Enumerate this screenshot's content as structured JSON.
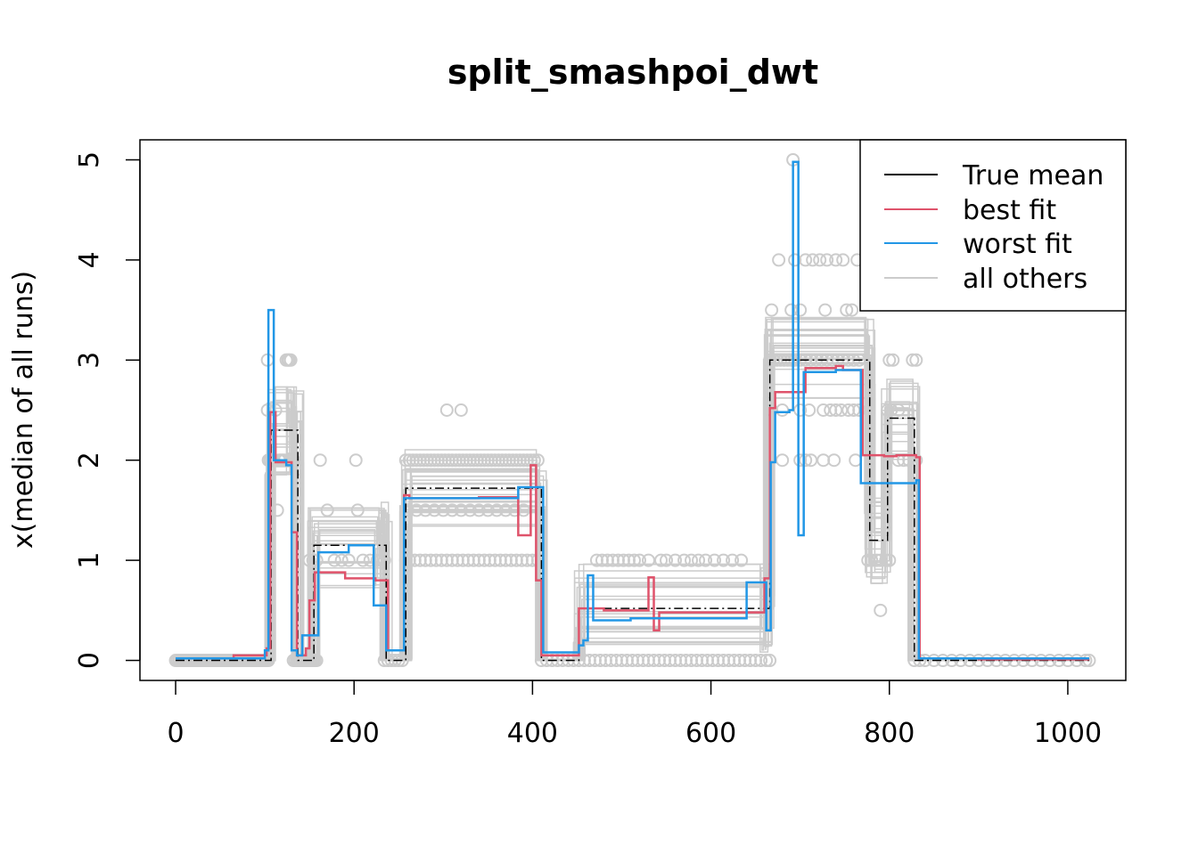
{
  "chart_data": {
    "type": "line",
    "title": "split_smashpoi_dwt",
    "xlabel": "",
    "ylabel": "x(median of all runs)",
    "xlim": [
      -40,
      1065
    ],
    "ylim": [
      -0.2,
      5.2
    ],
    "x_ticks": [
      0,
      200,
      400,
      600,
      800,
      1000
    ],
    "x_tick_labels": [
      "0",
      "200",
      "400",
      "600",
      "800",
      "1000"
    ],
    "y_ticks": [
      0,
      1,
      2,
      3,
      4,
      5
    ],
    "y_tick_labels": [
      "0",
      "1",
      "2",
      "3",
      "4",
      "5"
    ],
    "legend_position": "top-right",
    "colors": {
      "true_mean": "#000000",
      "best_fit": "#df536b",
      "worst_fit": "#2297e6",
      "all_others": "#cccccc"
    },
    "series": [
      {
        "name": "True mean",
        "style": "step-dashed",
        "x": [
          0,
          102,
          107,
          131,
          137,
          155,
          230,
          236,
          258,
          410,
          452,
          662,
          666,
          778,
          798,
          828,
          832,
          1024
        ],
        "y": [
          0,
          0,
          2.3,
          2.3,
          0,
          1.15,
          1.15,
          0,
          1.72,
          0,
          0.52,
          0.52,
          3.0,
          1.2,
          2.42,
          0,
          0,
          0
        ]
      },
      {
        "name": "best fit",
        "style": "step",
        "x": [
          0,
          65,
          96,
          102,
          106,
          112,
          126,
          130,
          136,
          140,
          146,
          150,
          156,
          162,
          190,
          224,
          238,
          256,
          262,
          270,
          340,
          384,
          398,
          404,
          410,
          414,
          452,
          463,
          470,
          480,
          530,
          536,
          542,
          600,
          660,
          666,
          672,
          690,
          706,
          740,
          748,
          770,
          786,
          794,
          808,
          830,
          834,
          900,
          1024
        ],
        "y": [
          0.02,
          0.05,
          0.05,
          0.12,
          2.48,
          1.98,
          1.98,
          1.28,
          0.05,
          0.05,
          0.12,
          0.6,
          0.88,
          0.88,
          0.82,
          0.8,
          0.1,
          1.65,
          1.62,
          1.62,
          1.63,
          1.25,
          1.95,
          0.8,
          0.05,
          0.05,
          0.52,
          0.52,
          0.52,
          0.5,
          0.83,
          0.3,
          0.48,
          0.48,
          0.82,
          2.52,
          2.68,
          2.68,
          2.92,
          2.94,
          2.9,
          2.05,
          2.05,
          2.04,
          2.05,
          2.03,
          0.02,
          0.01,
          0.01
        ],
        "note": "x[i]..x[i+1] segment at y[i]"
      },
      {
        "name": "worst fit",
        "style": "step",
        "x": [
          0,
          96,
          100,
          104,
          110,
          124,
          130,
          136,
          142,
          148,
          160,
          194,
          222,
          236,
          256,
          262,
          300,
          384,
          412,
          452,
          457,
          462,
          468,
          510,
          640,
          653,
          662,
          667,
          672,
          688,
          692,
          698,
          704,
          740,
          768,
          830,
          833,
          860,
          1024
        ],
        "y": [
          0.02,
          0.02,
          0.1,
          3.5,
          2.0,
          1.95,
          0.1,
          0.05,
          0.25,
          0.25,
          1.08,
          1.15,
          0.55,
          0.1,
          1.62,
          1.62,
          1.62,
          1.73,
          0.08,
          0.15,
          0.2,
          0.85,
          0.4,
          0.42,
          0.78,
          0.78,
          0.3,
          1.98,
          2.48,
          2.5,
          4.98,
          1.25,
          2.88,
          2.9,
          1.77,
          1.8,
          0.02,
          0.02,
          0.02
        ],
        "note": "x[i]..x[i+1] segment at y[i]"
      },
      {
        "name": "all others",
        "style": "many-steps-and-points"
      }
    ],
    "others_points": [
      [
        0,
        0
      ],
      [
        2,
        0
      ],
      [
        4,
        0
      ],
      [
        6,
        0
      ],
      [
        8,
        0
      ],
      [
        10,
        0
      ],
      [
        12,
        0
      ],
      [
        14,
        0
      ],
      [
        16,
        0
      ],
      [
        18,
        0
      ],
      [
        20,
        0
      ],
      [
        22,
        0
      ],
      [
        24,
        0
      ],
      [
        26,
        0
      ],
      [
        28,
        0
      ],
      [
        30,
        0
      ],
      [
        32,
        0
      ],
      [
        34,
        0
      ],
      [
        36,
        0
      ],
      [
        38,
        0
      ],
      [
        40,
        0
      ],
      [
        42,
        0
      ],
      [
        44,
        0
      ],
      [
        46,
        0
      ],
      [
        48,
        0
      ],
      [
        50,
        0
      ],
      [
        52,
        0
      ],
      [
        54,
        0
      ],
      [
        56,
        0
      ],
      [
        58,
        0
      ],
      [
        60,
        0
      ],
      [
        62,
        0
      ],
      [
        64,
        0
      ],
      [
        66,
        0
      ],
      [
        68,
        0
      ],
      [
        70,
        0
      ],
      [
        72,
        0
      ],
      [
        74,
        0
      ],
      [
        76,
        0
      ],
      [
        78,
        0
      ],
      [
        80,
        0
      ],
      [
        82,
        0
      ],
      [
        84,
        0
      ],
      [
        86,
        0
      ],
      [
        88,
        0
      ],
      [
        90,
        0
      ],
      [
        92,
        0
      ],
      [
        94,
        0
      ],
      [
        96,
        0
      ],
      [
        98,
        0
      ],
      [
        100,
        0
      ],
      [
        102,
        0
      ],
      [
        104,
        0
      ],
      [
        103,
        3
      ],
      [
        103,
        2.5
      ],
      [
        104,
        2
      ],
      [
        106,
        2
      ],
      [
        108,
        2
      ],
      [
        110,
        2
      ],
      [
        112,
        2.5
      ],
      [
        114,
        1.5
      ],
      [
        116,
        2
      ],
      [
        118,
        2
      ],
      [
        120,
        2
      ],
      [
        122,
        2
      ],
      [
        124,
        3
      ],
      [
        126,
        3
      ],
      [
        127,
        3
      ],
      [
        129,
        3
      ],
      [
        130,
        2
      ],
      [
        132,
        2
      ],
      [
        132,
        0
      ],
      [
        134,
        0
      ],
      [
        136,
        0
      ],
      [
        138,
        0
      ],
      [
        140,
        0
      ],
      [
        142,
        0
      ],
      [
        144,
        0
      ],
      [
        146,
        0
      ],
      [
        148,
        0
      ],
      [
        150,
        0
      ],
      [
        152,
        0
      ],
      [
        154,
        0
      ],
      [
        156,
        0
      ],
      [
        158,
        0
      ],
      [
        150,
        1
      ],
      [
        154,
        1
      ],
      [
        158,
        1
      ],
      [
        162,
        2
      ],
      [
        170,
        1.5
      ],
      [
        178,
        1
      ],
      [
        186,
        1
      ],
      [
        194,
        1
      ],
      [
        202,
        2
      ],
      [
        204,
        1.5
      ],
      [
        210,
        1
      ],
      [
        218,
        1
      ],
      [
        226,
        1
      ],
      [
        230,
        1
      ],
      [
        234,
        1
      ],
      [
        234,
        0
      ],
      [
        238,
        0
      ],
      [
        242,
        0
      ],
      [
        246,
        0
      ],
      [
        250,
        0
      ],
      [
        254,
        0
      ],
      [
        258,
        2
      ],
      [
        262,
        2
      ],
      [
        266,
        2
      ],
      [
        270,
        2
      ],
      [
        274,
        2
      ],
      [
        278,
        2
      ],
      [
        282,
        2
      ],
      [
        286,
        2
      ],
      [
        290,
        2
      ],
      [
        294,
        2
      ],
      [
        298,
        2
      ],
      [
        302,
        2
      ],
      [
        306,
        2
      ],
      [
        310,
        2
      ],
      [
        314,
        2
      ],
      [
        318,
        2
      ],
      [
        322,
        2
      ],
      [
        326,
        2
      ],
      [
        330,
        2
      ],
      [
        334,
        2
      ],
      [
        338,
        2
      ],
      [
        342,
        2
      ],
      [
        346,
        2
      ],
      [
        350,
        2
      ],
      [
        354,
        2
      ],
      [
        358,
        2
      ],
      [
        362,
        2
      ],
      [
        366,
        2
      ],
      [
        370,
        2
      ],
      [
        374,
        2
      ],
      [
        378,
        2
      ],
      [
        382,
        2
      ],
      [
        386,
        2
      ],
      [
        390,
        2
      ],
      [
        394,
        2
      ],
      [
        398,
        2
      ],
      [
        402,
        2
      ],
      [
        406,
        2
      ],
      [
        260,
        1.5
      ],
      [
        270,
        1.5
      ],
      [
        280,
        1.5
      ],
      [
        290,
        1.5
      ],
      [
        300,
        1.5
      ],
      [
        310,
        1.5
      ],
      [
        320,
        1.5
      ],
      [
        330,
        1.5
      ],
      [
        340,
        1.5
      ],
      [
        350,
        1.5
      ],
      [
        360,
        1.5
      ],
      [
        370,
        1.5
      ],
      [
        380,
        1.5
      ],
      [
        390,
        1.5
      ],
      [
        304,
        2.5
      ],
      [
        320,
        2.5
      ],
      [
        258,
        1
      ],
      [
        262,
        1
      ],
      [
        268,
        1
      ],
      [
        274,
        1
      ],
      [
        280,
        1
      ],
      [
        286,
        1
      ],
      [
        292,
        1
      ],
      [
        298,
        1
      ],
      [
        304,
        1
      ],
      [
        310,
        1
      ],
      [
        316,
        1
      ],
      [
        322,
        1
      ],
      [
        328,
        1
      ],
      [
        334,
        1
      ],
      [
        340,
        1
      ],
      [
        346,
        1
      ],
      [
        352,
        1
      ],
      [
        358,
        1
      ],
      [
        364,
        1
      ],
      [
        370,
        1
      ],
      [
        376,
        1
      ],
      [
        382,
        1
      ],
      [
        388,
        1
      ],
      [
        394,
        1
      ],
      [
        400,
        1
      ],
      [
        406,
        1
      ],
      [
        410,
        0
      ],
      [
        416,
        0
      ],
      [
        422,
        0
      ],
      [
        428,
        0
      ],
      [
        434,
        0
      ],
      [
        440,
        0
      ],
      [
        446,
        0
      ],
      [
        452,
        0
      ],
      [
        458,
        0
      ],
      [
        464,
        0
      ],
      [
        470,
        0
      ],
      [
        476,
        0
      ],
      [
        482,
        0
      ],
      [
        488,
        0
      ],
      [
        494,
        0
      ],
      [
        500,
        0
      ],
      [
        506,
        0
      ],
      [
        512,
        0
      ],
      [
        518,
        0
      ],
      [
        524,
        0
      ],
      [
        530,
        0
      ],
      [
        536,
        0
      ],
      [
        542,
        0
      ],
      [
        548,
        0
      ],
      [
        554,
        0
      ],
      [
        560,
        0
      ],
      [
        566,
        0
      ],
      [
        572,
        0
      ],
      [
        578,
        0
      ],
      [
        584,
        0
      ],
      [
        590,
        0
      ],
      [
        596,
        0
      ],
      [
        602,
        0
      ],
      [
        608,
        0
      ],
      [
        614,
        0
      ],
      [
        620,
        0
      ],
      [
        626,
        0
      ],
      [
        632,
        0
      ],
      [
        638,
        0
      ],
      [
        644,
        0
      ],
      [
        650,
        0
      ],
      [
        656,
        0
      ],
      [
        662,
        0
      ],
      [
        666,
        0
      ],
      [
        472,
        1
      ],
      [
        478,
        1
      ],
      [
        484,
        1
      ],
      [
        490,
        1
      ],
      [
        496,
        1
      ],
      [
        502,
        1
      ],
      [
        508,
        1
      ],
      [
        514,
        1
      ],
      [
        520,
        1
      ],
      [
        530,
        1
      ],
      [
        544,
        1
      ],
      [
        550,
        1
      ],
      [
        560,
        1
      ],
      [
        570,
        1
      ],
      [
        578,
        1
      ],
      [
        586,
        1
      ],
      [
        594,
        1
      ],
      [
        604,
        1
      ],
      [
        614,
        1
      ],
      [
        624,
        1
      ],
      [
        634,
        1
      ],
      [
        666,
        3
      ],
      [
        670,
        3
      ],
      [
        674,
        3
      ],
      [
        678,
        3
      ],
      [
        682,
        3
      ],
      [
        686,
        3
      ],
      [
        690,
        3
      ],
      [
        694,
        3
      ],
      [
        700,
        3
      ],
      [
        706,
        3
      ],
      [
        712,
        3
      ],
      [
        718,
        3
      ],
      [
        724,
        3
      ],
      [
        730,
        3
      ],
      [
        736,
        3
      ],
      [
        742,
        3
      ],
      [
        748,
        3
      ],
      [
        754,
        3
      ],
      [
        760,
        3
      ],
      [
        766,
        3
      ],
      [
        668,
        3.5
      ],
      [
        676,
        4
      ],
      [
        690,
        3.5
      ],
      [
        694,
        4
      ],
      [
        700,
        3.5
      ],
      [
        706,
        4
      ],
      [
        714,
        4
      ],
      [
        722,
        4
      ],
      [
        730,
        4
      ],
      [
        740,
        4
      ],
      [
        748,
        4
      ],
      [
        764,
        4
      ],
      [
        728,
        3.5
      ],
      [
        752,
        3.5
      ],
      [
        758,
        3.5
      ],
      [
        668,
        2.5
      ],
      [
        680,
        2.5
      ],
      [
        700,
        2.5
      ],
      [
        710,
        2.5
      ],
      [
        726,
        2.5
      ],
      [
        734,
        2.5
      ],
      [
        740,
        2.5
      ],
      [
        746,
        2.5
      ],
      [
        754,
        2.5
      ],
      [
        760,
        2.5
      ],
      [
        766,
        2.5
      ],
      [
        680,
        2
      ],
      [
        700,
        2
      ],
      [
        706,
        2
      ],
      [
        712,
        2
      ],
      [
        726,
        2
      ],
      [
        738,
        2
      ],
      [
        762,
        2
      ],
      [
        692,
        5
      ],
      [
        776,
        1
      ],
      [
        780,
        1
      ],
      [
        786,
        1
      ],
      [
        790,
        1
      ],
      [
        796,
        1
      ],
      [
        800,
        1
      ],
      [
        790,
        0.5
      ],
      [
        798,
        2.5
      ],
      [
        802,
        2.5
      ],
      [
        810,
        2.5
      ],
      [
        800,
        3
      ],
      [
        804,
        3
      ],
      [
        826,
        3
      ],
      [
        830,
        3
      ],
      [
        810,
        2
      ],
      [
        816,
        2
      ],
      [
        822,
        2
      ],
      [
        830,
        2
      ],
      [
        828,
        0
      ],
      [
        834,
        0
      ],
      [
        840,
        0
      ],
      [
        850,
        0
      ],
      [
        860,
        0
      ],
      [
        870,
        0
      ],
      [
        880,
        0
      ],
      [
        890,
        0
      ],
      [
        900,
        0
      ],
      [
        910,
        0
      ],
      [
        920,
        0
      ],
      [
        930,
        0
      ],
      [
        940,
        0
      ],
      [
        950,
        0
      ],
      [
        960,
        0
      ],
      [
        970,
        0
      ],
      [
        980,
        0
      ],
      [
        990,
        0
      ],
      [
        1000,
        0
      ],
      [
        1010,
        0
      ],
      [
        1020,
        0
      ],
      [
        1024,
        0
      ]
    ]
  }
}
